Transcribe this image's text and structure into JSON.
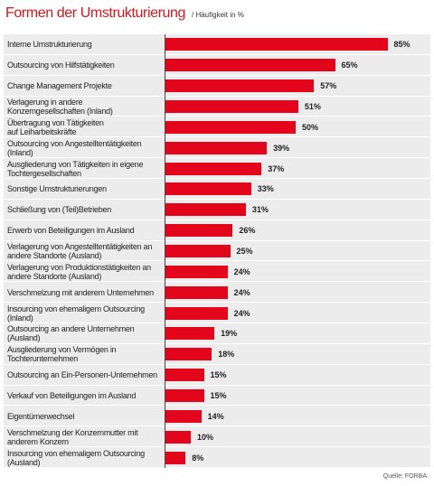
{
  "chart_data": {
    "type": "bar",
    "orientation": "horizontal",
    "title": "Formen der Umstrukturierung",
    "subtitle": "/ Häufigkeit in %",
    "source": "Quelle: FORBA",
    "color": "#e3051b",
    "categories": [
      "Interne Umstrukturierung",
      "Outsourcing von Hilfstätigkeiten",
      "Change Management Projekte",
      "Verlagerung in andere\nKonzerngesellschaften (Inland)",
      "Übertragung von Tätigkeiten\nauf Leiharbeitskräfte",
      "Outsourcing von Angestelltentätigkeiten\n(Inland)",
      "Ausgliederung von Tätigkeiten in eigene\nTochtergesellschaften",
      "Sonstige Umstrukturierungen",
      "Schließung von (Teil)Betrieben",
      "Erwerb von Beteiligungen im Ausland",
      "Verlagerung von Angestelltentätigkeiten an\nandere Standorte (Ausland)",
      "Verlagerung von Produktionstätigkeiten an\nandere Standorte (Ausland)",
      "Verschmelzung mit anderem Unternehmen",
      "Insourcing von ehemaligem Outsourcing\n(Inland)",
      "Outsourcing an andere Unternehmen\n(Ausland)",
      "Ausgliederung von Vermögen in\nTochterunternehmen",
      "Outsourcing an Ein-Personen-Unternehmen",
      "Verkauf von Beteiligungen im Ausland",
      "Eigentümerwechsel",
      "Verschmelzung der Konzernmutter mit\nanderem Konzern",
      "Insourcing von ehemaligem Outsourcing\n(Ausland)"
    ],
    "values": [
      85,
      65,
      57,
      51,
      50,
      39,
      37,
      33,
      31,
      26,
      25,
      24,
      24,
      24,
      19,
      18,
      15,
      15,
      14,
      10,
      8
    ],
    "value_labels": [
      "85%",
      "65%",
      "57%",
      "51%",
      "50%",
      "39%",
      "37%",
      "33%",
      "31%",
      "26%",
      "25%",
      "24%",
      "24%",
      "24%",
      "19%",
      "18%",
      "15%",
      "15%",
      "14%",
      "10%",
      "8%"
    ]
  }
}
